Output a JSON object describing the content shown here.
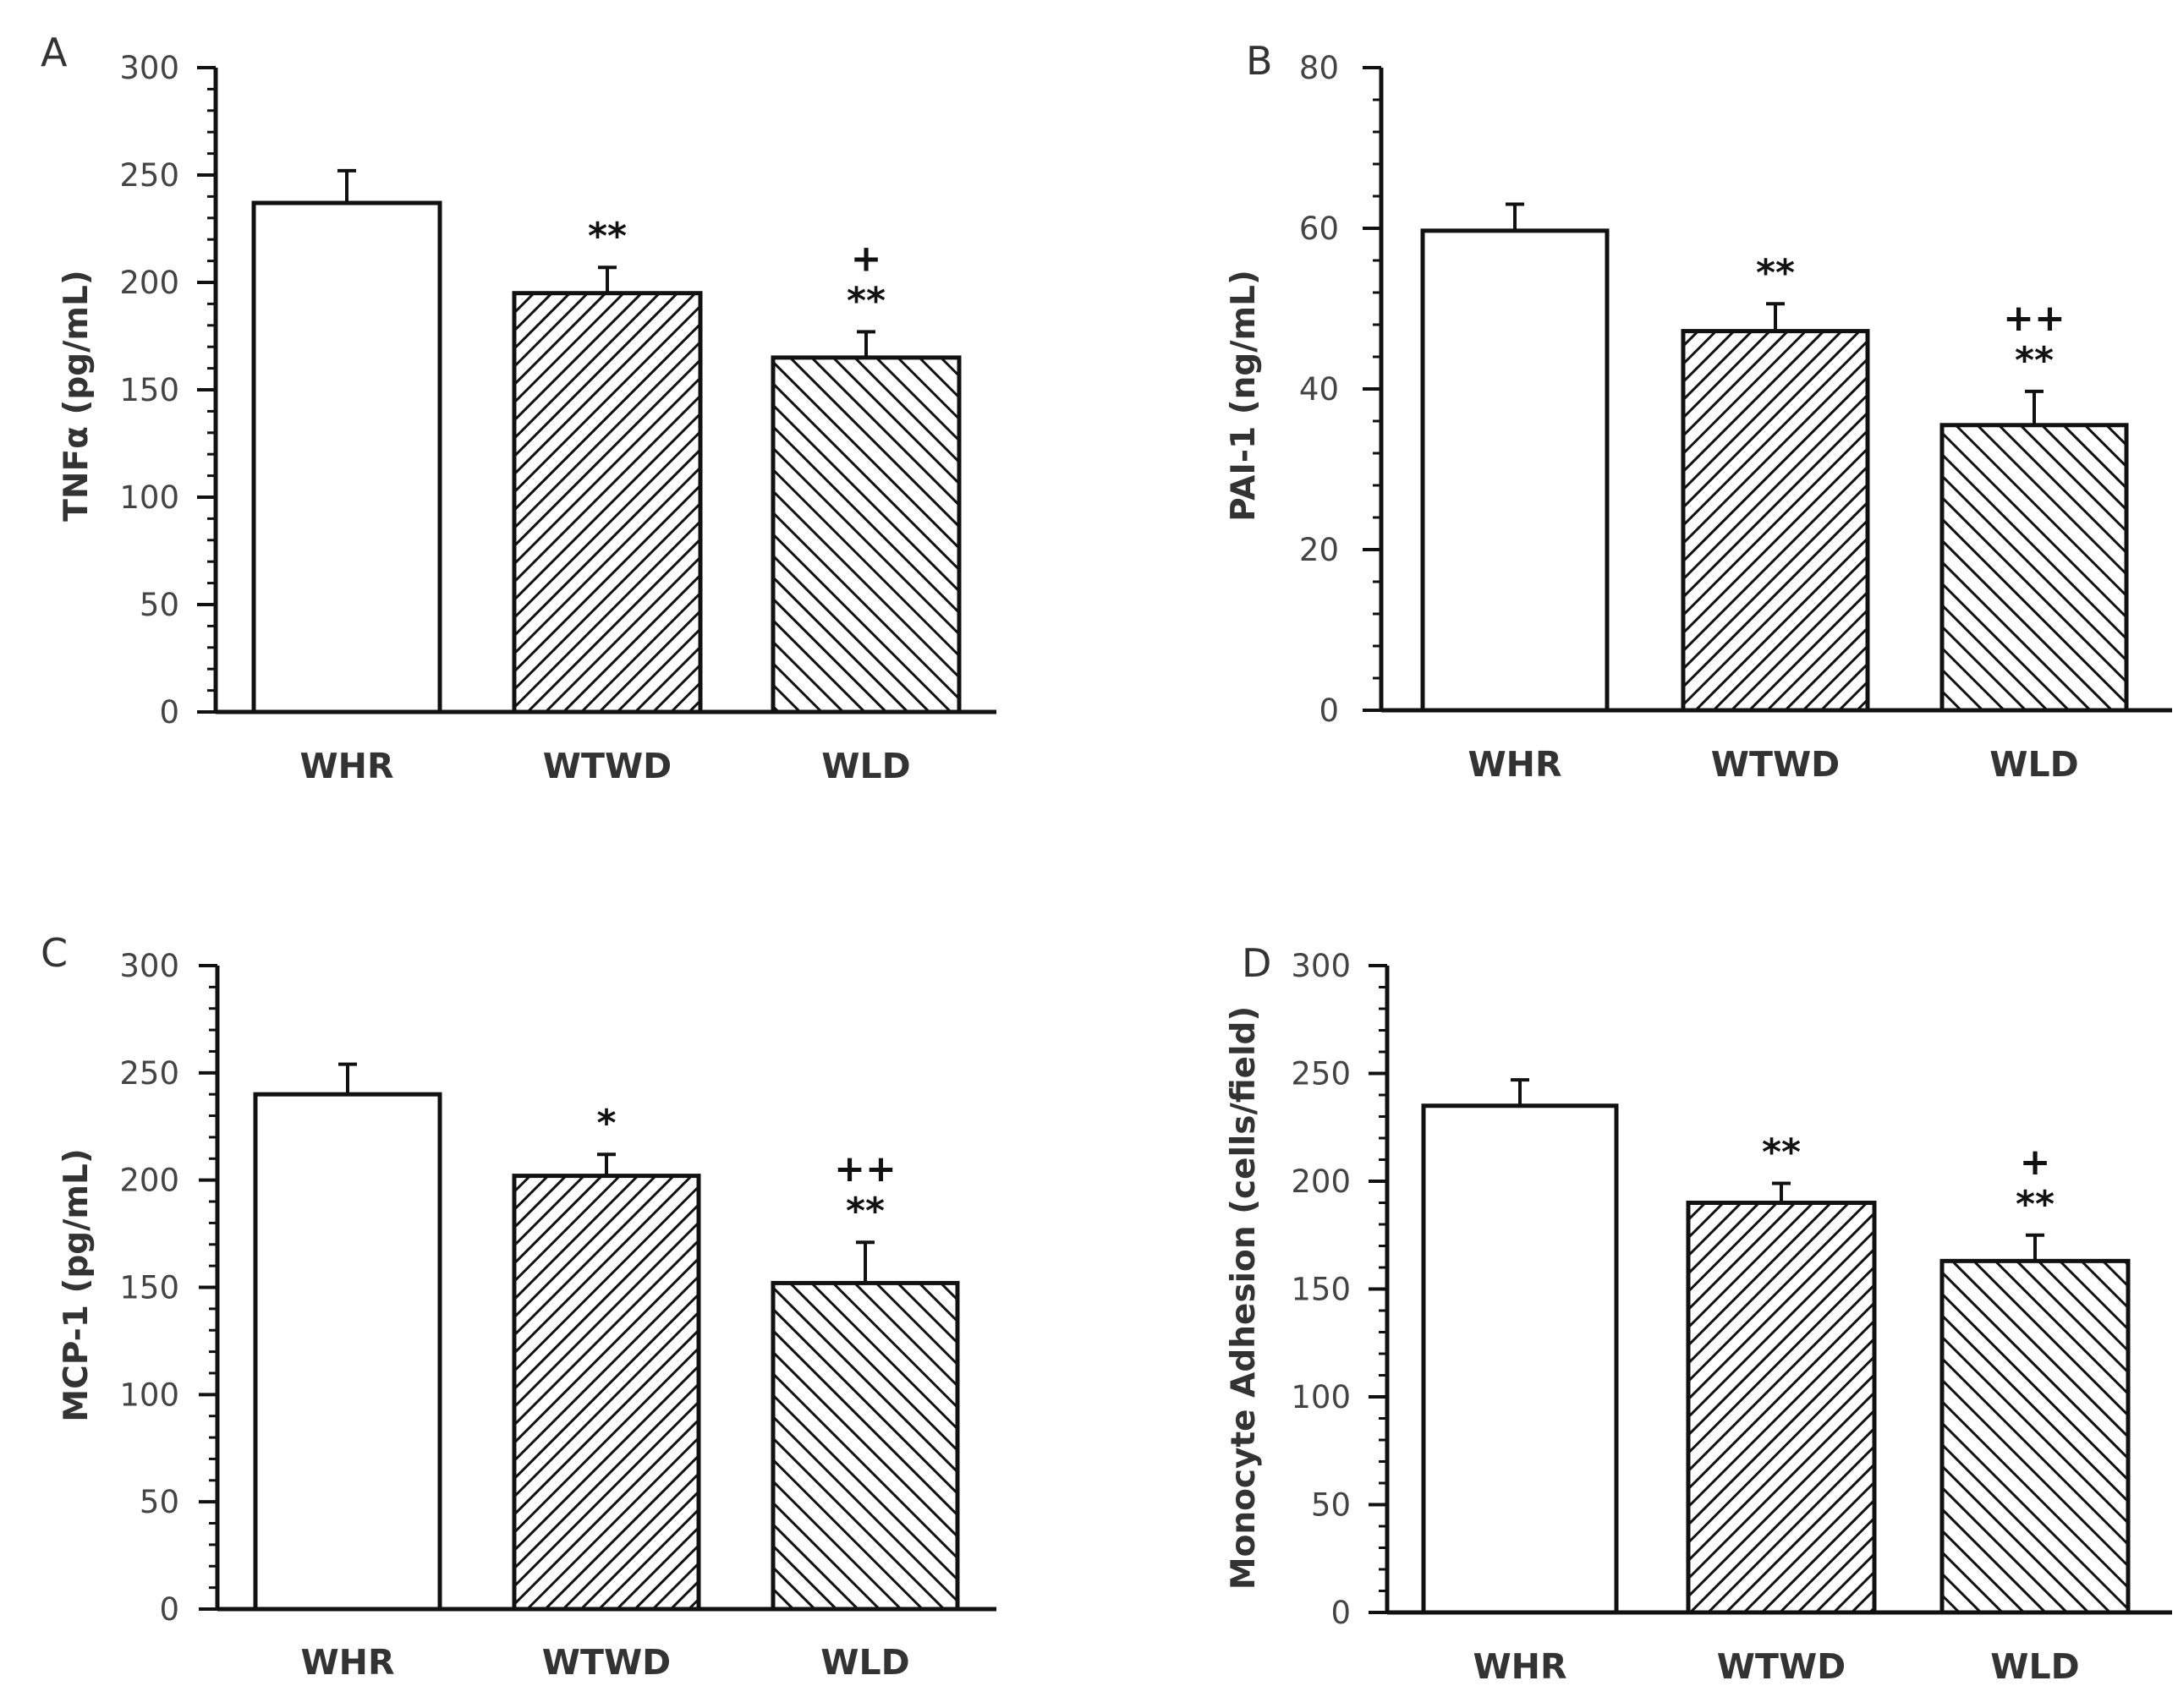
{
  "figure": {
    "panels": [
      {
        "letter": "A"
      },
      {
        "letter": "B"
      },
      {
        "letter": "C"
      },
      {
        "letter": "D"
      }
    ]
  },
  "chart_data": [
    {
      "type": "bar",
      "panel": "A",
      "title": "",
      "categories": [
        "WHR",
        "WTWD",
        "WLD"
      ],
      "values": [
        237,
        195,
        165
      ],
      "errors": [
        15,
        12,
        12
      ],
      "patterns": [
        "none",
        "dense-hatch",
        "hatch"
      ],
      "significance": [
        [],
        [
          "**"
        ],
        [
          "+",
          "**"
        ]
      ],
      "xlabel": "",
      "ylabel": "TNFα (pg/mL)",
      "ylim": [
        0,
        300
      ],
      "yticks": [
        0,
        50,
        100,
        150,
        200,
        250,
        300
      ],
      "minor_step": 10,
      "colors": {
        "fill": "#ffffff",
        "stroke": "#111111",
        "hatch": "#111111"
      }
    },
    {
      "type": "bar",
      "panel": "B",
      "title": "",
      "categories": [
        "WHR",
        "WTWD",
        "WLD"
      ],
      "values": [
        59.7,
        47.2,
        35.5
      ],
      "errors": [
        3.3,
        3.4,
        4.2
      ],
      "patterns": [
        "none",
        "dense-hatch",
        "hatch"
      ],
      "significance": [
        [],
        [
          "**"
        ],
        [
          "++",
          "**"
        ]
      ],
      "xlabel": "",
      "ylabel": "PAI-1 (ng/mL)",
      "ylim": [
        0,
        80
      ],
      "yticks": [
        0,
        20,
        40,
        60,
        80
      ],
      "minor_step": 4,
      "colors": {
        "fill": "#ffffff",
        "stroke": "#111111",
        "hatch": "#111111"
      }
    },
    {
      "type": "bar",
      "panel": "C",
      "title": "",
      "categories": [
        "WHR",
        "WTWD",
        "WLD"
      ],
      "values": [
        240,
        202,
        152
      ],
      "errors": [
        14,
        10,
        19
      ],
      "patterns": [
        "none",
        "dense-hatch",
        "hatch"
      ],
      "significance": [
        [],
        [
          "*"
        ],
        [
          "++",
          "**"
        ]
      ],
      "xlabel": "",
      "ylabel": "MCP-1 (pg/mL)",
      "ylim": [
        0,
        300
      ],
      "yticks": [
        0,
        50,
        100,
        150,
        200,
        250,
        300
      ],
      "minor_step": 10,
      "colors": {
        "fill": "#ffffff",
        "stroke": "#111111",
        "hatch": "#111111"
      }
    },
    {
      "type": "bar",
      "panel": "D",
      "title": "",
      "categories": [
        "WHR",
        "WTWD",
        "WLD"
      ],
      "values": [
        235,
        190,
        163
      ],
      "errors": [
        12,
        9,
        12
      ],
      "patterns": [
        "none",
        "dense-hatch",
        "hatch"
      ],
      "significance": [
        [],
        [
          "**"
        ],
        [
          "+",
          "**"
        ]
      ],
      "xlabel": "",
      "ylabel": "Monocyte Adhesion (cells/field)",
      "ylim": [
        0,
        300
      ],
      "yticks": [
        0,
        50,
        100,
        150,
        200,
        250,
        300
      ],
      "minor_step": 10,
      "colors": {
        "fill": "#ffffff",
        "stroke": "#111111",
        "hatch": "#111111"
      }
    }
  ]
}
